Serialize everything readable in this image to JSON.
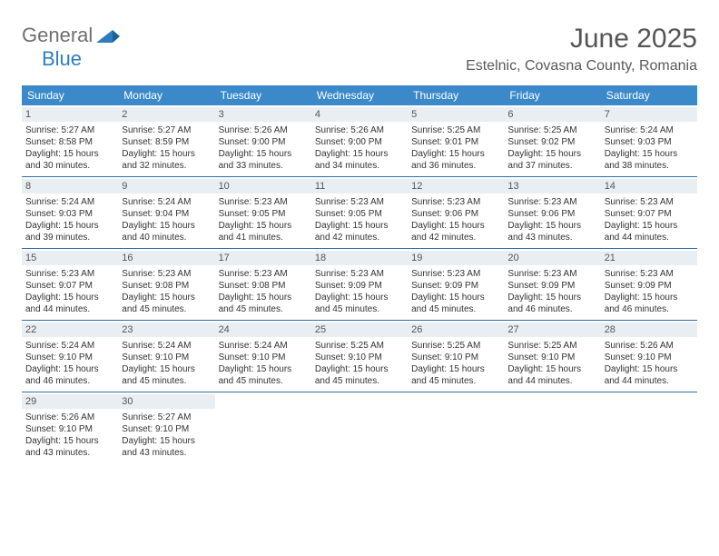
{
  "logo": {
    "text1": "General",
    "text2": "Blue"
  },
  "title": {
    "month": "June 2025",
    "location": "Estelnic, Covasna County, Romania"
  },
  "colors": {
    "header_bg": "#3b89c9",
    "header_text": "#ffffff",
    "daynum_bg": "#e9eef2",
    "week_divider": "#2f6fa8",
    "logo_gray": "#6f6f6f",
    "logo_blue": "#2f7dc0",
    "body_text": "#333333"
  },
  "daysOfWeek": [
    "Sunday",
    "Monday",
    "Tuesday",
    "Wednesday",
    "Thursday",
    "Friday",
    "Saturday"
  ],
  "weeks": [
    [
      {
        "n": "1",
        "sr": "5:27 AM",
        "ss": "8:58 PM",
        "dl": "15 hours and 30 minutes."
      },
      {
        "n": "2",
        "sr": "5:27 AM",
        "ss": "8:59 PM",
        "dl": "15 hours and 32 minutes."
      },
      {
        "n": "3",
        "sr": "5:26 AM",
        "ss": "9:00 PM",
        "dl": "15 hours and 33 minutes."
      },
      {
        "n": "4",
        "sr": "5:26 AM",
        "ss": "9:00 PM",
        "dl": "15 hours and 34 minutes."
      },
      {
        "n": "5",
        "sr": "5:25 AM",
        "ss": "9:01 PM",
        "dl": "15 hours and 36 minutes."
      },
      {
        "n": "6",
        "sr": "5:25 AM",
        "ss": "9:02 PM",
        "dl": "15 hours and 37 minutes."
      },
      {
        "n": "7",
        "sr": "5:24 AM",
        "ss": "9:03 PM",
        "dl": "15 hours and 38 minutes."
      }
    ],
    [
      {
        "n": "8",
        "sr": "5:24 AM",
        "ss": "9:03 PM",
        "dl": "15 hours and 39 minutes."
      },
      {
        "n": "9",
        "sr": "5:24 AM",
        "ss": "9:04 PM",
        "dl": "15 hours and 40 minutes."
      },
      {
        "n": "10",
        "sr": "5:23 AM",
        "ss": "9:05 PM",
        "dl": "15 hours and 41 minutes."
      },
      {
        "n": "11",
        "sr": "5:23 AM",
        "ss": "9:05 PM",
        "dl": "15 hours and 42 minutes."
      },
      {
        "n": "12",
        "sr": "5:23 AM",
        "ss": "9:06 PM",
        "dl": "15 hours and 42 minutes."
      },
      {
        "n": "13",
        "sr": "5:23 AM",
        "ss": "9:06 PM",
        "dl": "15 hours and 43 minutes."
      },
      {
        "n": "14",
        "sr": "5:23 AM",
        "ss": "9:07 PM",
        "dl": "15 hours and 44 minutes."
      }
    ],
    [
      {
        "n": "15",
        "sr": "5:23 AM",
        "ss": "9:07 PM",
        "dl": "15 hours and 44 minutes."
      },
      {
        "n": "16",
        "sr": "5:23 AM",
        "ss": "9:08 PM",
        "dl": "15 hours and 45 minutes."
      },
      {
        "n": "17",
        "sr": "5:23 AM",
        "ss": "9:08 PM",
        "dl": "15 hours and 45 minutes."
      },
      {
        "n": "18",
        "sr": "5:23 AM",
        "ss": "9:09 PM",
        "dl": "15 hours and 45 minutes."
      },
      {
        "n": "19",
        "sr": "5:23 AM",
        "ss": "9:09 PM",
        "dl": "15 hours and 45 minutes."
      },
      {
        "n": "20",
        "sr": "5:23 AM",
        "ss": "9:09 PM",
        "dl": "15 hours and 46 minutes."
      },
      {
        "n": "21",
        "sr": "5:23 AM",
        "ss": "9:09 PM",
        "dl": "15 hours and 46 minutes."
      }
    ],
    [
      {
        "n": "22",
        "sr": "5:24 AM",
        "ss": "9:10 PM",
        "dl": "15 hours and 46 minutes."
      },
      {
        "n": "23",
        "sr": "5:24 AM",
        "ss": "9:10 PM",
        "dl": "15 hours and 45 minutes."
      },
      {
        "n": "24",
        "sr": "5:24 AM",
        "ss": "9:10 PM",
        "dl": "15 hours and 45 minutes."
      },
      {
        "n": "25",
        "sr": "5:25 AM",
        "ss": "9:10 PM",
        "dl": "15 hours and 45 minutes."
      },
      {
        "n": "26",
        "sr": "5:25 AM",
        "ss": "9:10 PM",
        "dl": "15 hours and 45 minutes."
      },
      {
        "n": "27",
        "sr": "5:25 AM",
        "ss": "9:10 PM",
        "dl": "15 hours and 44 minutes."
      },
      {
        "n": "28",
        "sr": "5:26 AM",
        "ss": "9:10 PM",
        "dl": "15 hours and 44 minutes."
      }
    ],
    [
      {
        "n": "29",
        "sr": "5:26 AM",
        "ss": "9:10 PM",
        "dl": "15 hours and 43 minutes."
      },
      {
        "n": "30",
        "sr": "5:27 AM",
        "ss": "9:10 PM",
        "dl": "15 hours and 43 minutes."
      },
      {
        "empty": true
      },
      {
        "empty": true
      },
      {
        "empty": true
      },
      {
        "empty": true
      },
      {
        "empty": true
      }
    ]
  ],
  "labels": {
    "sunrise_prefix": "Sunrise: ",
    "sunset_prefix": "Sunset: ",
    "daylight_prefix": "Daylight: "
  }
}
